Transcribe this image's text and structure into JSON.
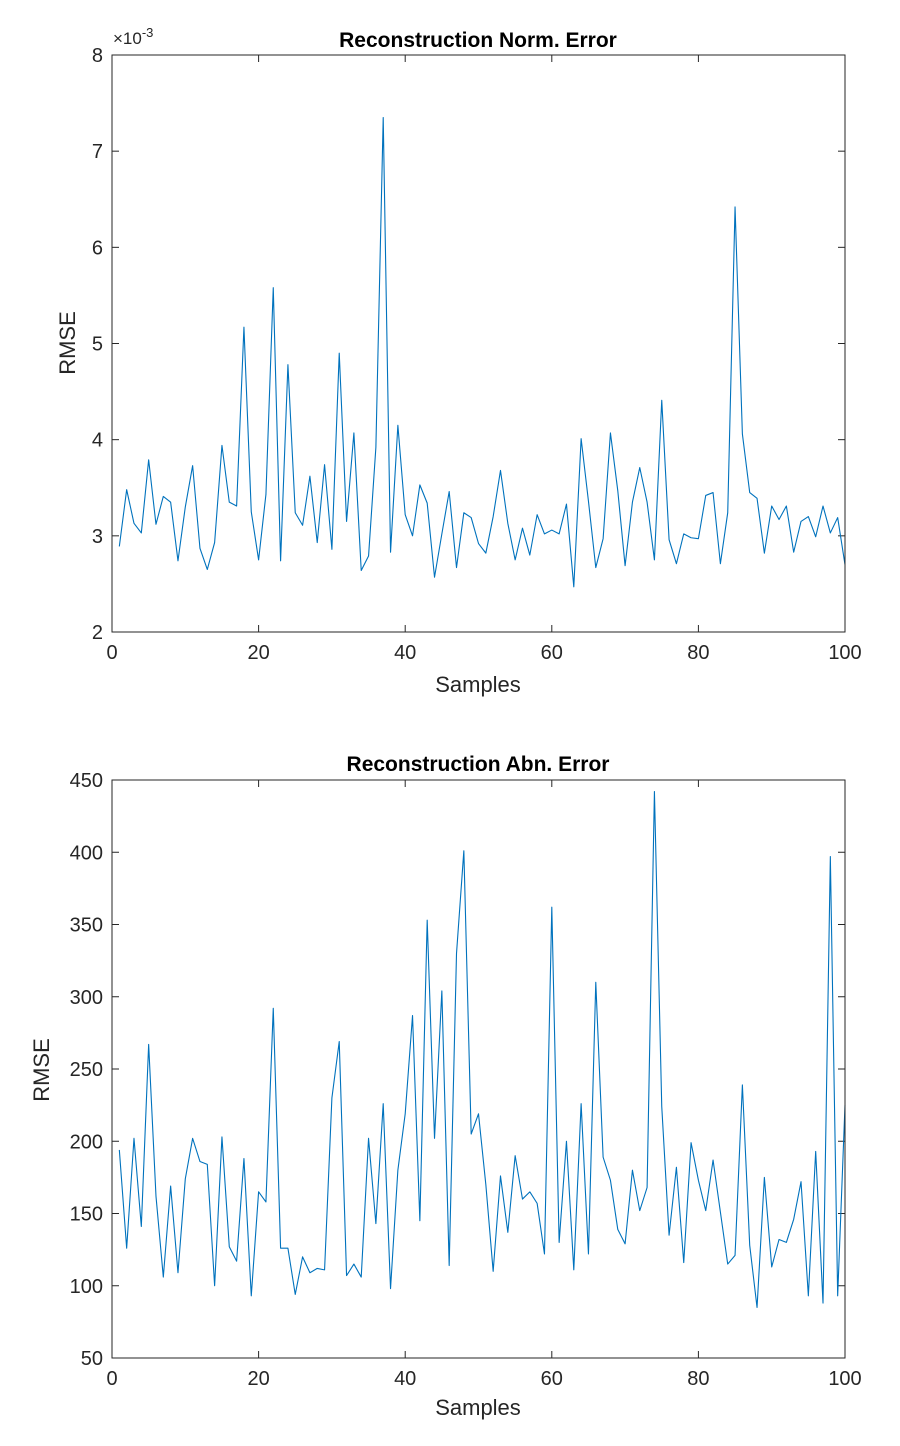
{
  "chart_data": [
    {
      "type": "line",
      "title": "Reconstruction Norm. Error",
      "xlabel": "Samples",
      "ylabel": "RMSE",
      "exponent_label": "×10",
      "exponent_power": "-3",
      "xlim": [
        0,
        100
      ],
      "ylim": [
        2,
        8
      ],
      "xticks": [
        0,
        20,
        40,
        60,
        80,
        100
      ],
      "yticks": [
        2,
        3,
        4,
        5,
        6,
        7,
        8
      ],
      "color": "#0072bd",
      "x": [
        1,
        2,
        3,
        4,
        5,
        6,
        7,
        8,
        9,
        10,
        11,
        12,
        13,
        14,
        15,
        16,
        17,
        18,
        19,
        20,
        21,
        22,
        23,
        24,
        25,
        26,
        27,
        28,
        29,
        30,
        31,
        32,
        33,
        34,
        35,
        36,
        37,
        38,
        39,
        40,
        41,
        42,
        43,
        44,
        45,
        46,
        47,
        48,
        49,
        50,
        51,
        52,
        53,
        54,
        55,
        56,
        57,
        58,
        59,
        60,
        61,
        62,
        63,
        64,
        65,
        66,
        67,
        68,
        69,
        70,
        71,
        72,
        73,
        74,
        75,
        76,
        77,
        78,
        79,
        80,
        81,
        82,
        83,
        84,
        85,
        86,
        87,
        88,
        89,
        90,
        91,
        92,
        93,
        94,
        95,
        96,
        97,
        98,
        99,
        100
      ],
      "values": [
        2.89,
        3.48,
        3.13,
        3.03,
        3.79,
        3.12,
        3.41,
        3.35,
        2.74,
        3.3,
        3.73,
        2.87,
        2.65,
        2.93,
        3.94,
        3.35,
        3.31,
        5.17,
        3.25,
        2.75,
        3.43,
        5.58,
        2.74,
        4.78,
        3.24,
        3.11,
        3.62,
        2.93,
        3.74,
        2.86,
        4.9,
        3.15,
        4.07,
        2.64,
        2.79,
        3.92,
        7.35,
        2.83,
        4.15,
        3.22,
        3.0,
        3.53,
        3.34,
        2.57,
        3.02,
        3.46,
        2.67,
        3.24,
        3.19,
        2.92,
        2.82,
        3.2,
        3.68,
        3.13,
        2.75,
        3.08,
        2.8,
        3.22,
        3.02,
        3.06,
        3.02,
        3.33,
        2.47,
        4.01,
        3.36,
        2.67,
        2.97,
        4.07,
        3.47,
        2.69,
        3.35,
        3.71,
        3.35,
        2.75,
        4.41,
        2.96,
        2.71,
        3.02,
        2.98,
        2.97,
        3.42,
        3.45,
        2.71,
        3.24,
        6.42,
        4.06,
        3.45,
        3.39,
        2.82,
        3.31,
        3.17,
        3.31,
        2.83,
        3.15,
        3.2,
        2.99,
        3.31,
        3.03,
        3.19,
        2.7
      ]
    },
    {
      "type": "line",
      "title": "Reconstruction Abn. Error",
      "xlabel": "Samples",
      "ylabel": "RMSE",
      "xlim": [
        0,
        100
      ],
      "ylim": [
        50,
        450
      ],
      "xticks": [
        0,
        20,
        40,
        60,
        80,
        100
      ],
      "yticks": [
        50,
        100,
        150,
        200,
        250,
        300,
        350,
        400,
        450
      ],
      "color": "#0072bd",
      "x": [
        1,
        2,
        3,
        4,
        5,
        6,
        7,
        8,
        9,
        10,
        11,
        12,
        13,
        14,
        15,
        16,
        17,
        18,
        19,
        20,
        21,
        22,
        23,
        24,
        25,
        26,
        27,
        28,
        29,
        30,
        31,
        32,
        33,
        34,
        35,
        36,
        37,
        38,
        39,
        40,
        41,
        42,
        43,
        44,
        45,
        46,
        47,
        48,
        49,
        50,
        51,
        52,
        53,
        54,
        55,
        56,
        57,
        58,
        59,
        60,
        61,
        62,
        63,
        64,
        65,
        66,
        67,
        68,
        69,
        70,
        71,
        72,
        73,
        74,
        75,
        76,
        77,
        78,
        79,
        80,
        81,
        82,
        83,
        84,
        85,
        86,
        87,
        88,
        89,
        90,
        91,
        92,
        93,
        94,
        95,
        96,
        97,
        98,
        99,
        100
      ],
      "values": [
        194,
        126,
        202,
        141,
        267,
        162,
        106,
        169,
        109,
        174,
        202,
        186,
        184,
        100,
        203,
        127,
        117,
        188,
        93,
        165,
        158,
        292,
        126,
        126,
        94,
        120,
        109,
        112,
        111,
        230,
        269,
        107,
        115,
        106,
        202,
        143,
        226,
        98,
        180,
        219,
        287,
        145,
        353,
        202,
        304,
        114,
        330,
        401,
        205,
        219,
        170,
        110,
        176,
        137,
        190,
        160,
        165,
        157,
        122,
        362,
        130,
        200,
        111,
        226,
        122,
        310,
        189,
        173,
        139,
        129,
        180,
        152,
        168,
        442,
        224,
        135,
        182,
        116,
        199,
        173,
        152,
        187,
        151,
        115,
        121,
        239,
        128,
        85,
        175,
        113,
        132,
        130,
        146,
        172,
        93,
        193,
        88,
        397,
        93,
        225
      ]
    }
  ]
}
